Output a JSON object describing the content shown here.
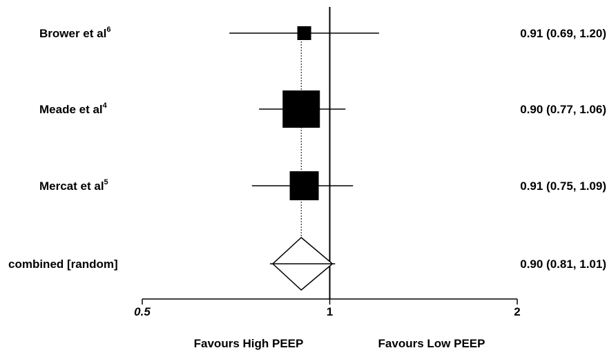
{
  "chart_data": {
    "type": "forest",
    "x_scale": "log",
    "xlim": [
      0.5,
      2
    ],
    "ticks": [
      {
        "value": 0.5,
        "label": "0.5",
        "italic": true
      },
      {
        "value": 1,
        "label": "1",
        "italic": false
      },
      {
        "value": 2,
        "label": "2",
        "italic": false
      }
    ],
    "reference_line": 1,
    "studies": [
      {
        "label": "Brower et al",
        "sup": "6",
        "estimate": 0.91,
        "lower": 0.69,
        "upper": 1.2,
        "ci_text": "0.91 (0.69, 1.20)",
        "weight": "small"
      },
      {
        "label": "Meade et al",
        "sup": "4",
        "estimate": 0.9,
        "lower": 0.77,
        "upper": 1.06,
        "ci_text": "0.90 (0.77, 1.06)",
        "weight": "large"
      },
      {
        "label": "Mercat et al",
        "sup": "5",
        "estimate": 0.91,
        "lower": 0.75,
        "upper": 1.09,
        "ci_text": "0.91 (0.75, 1.09)",
        "weight": "medium"
      }
    ],
    "pooled": {
      "label": "combined [random]",
      "estimate": 0.9,
      "lower": 0.81,
      "upper": 1.01,
      "ci_text": "0.90 (0.81, 1.01)"
    },
    "favours_left": "Favours High PEEP",
    "favours_right": "Favours Low PEEP",
    "colors": {
      "marker": "#000000",
      "lines": "#000000",
      "background": "#ffffff"
    }
  }
}
